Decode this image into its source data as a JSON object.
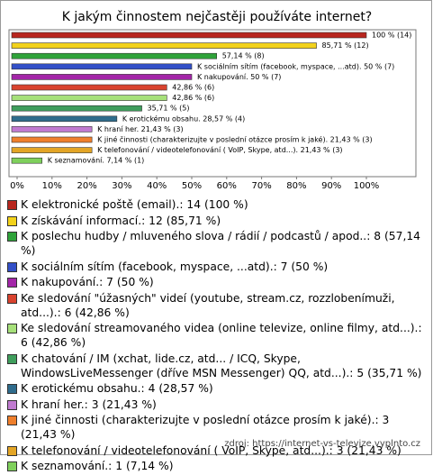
{
  "chart_data": {
    "type": "barh",
    "title": "K jakým činnostem nejčastěji používáte internet?",
    "categories": [
      "K elektronické poště (email).: 14 (100 %)",
      "K získávání informací.: 12 (85,71 %)",
      "K poslechu hudby / mluveného slova / rádií / podcastů / apod..: 8 (57,14 %)",
      "K sociálním sítím (facebook, myspace, ...atd).: 7 (50 %)",
      "K nakupování.: 7 (50 %)",
      "Ke sledování \"úžasných\" videí (youtube, stream.cz, rozzlobenímuži, atd...).: 6 (42,86 %)",
      "Ke sledování streamovaného videa (online televize, online filmy, atd...).: 6 (42,86 %)",
      "K chatování / IM (xchat, lide.cz, atd... / ICQ, Skype, WindowsLiveMessenger (dříve MSN Messenger) QQ, atd...).: 5 (35,71 %)",
      "K erotickému obsahu.: 4 (28,57 %)",
      "K hraní her.: 3 (21,43 %)",
      "K jiné činnosti (charakterizujte v poslední otázce prosím k jaké).: 3 (21,43 %)",
      "K telefonování / videotelefonování ( VoIP, Skype, atd...).: 3 (21,43 %)",
      "K seznamování.: 1 (7,14 %)"
    ],
    "values": [
      100,
      85.71,
      57.14,
      50,
      50,
      42.86,
      42.86,
      35.71,
      28.57,
      21.43,
      21.43,
      21.43,
      7.14
    ],
    "value_labels": [
      "100 % (14)",
      "85,71 % (12)",
      "57,14 % (8)",
      "K sociálním sítím (facebook, myspace, ...atd). 50 % (7)",
      "K nakupování. 50 % (7)",
      "42,86 % (6)",
      "42,86 % (6)",
      "35,71 % (5)",
      "K erotickému obsahu. 28,57 % (4)",
      "K hraní her. 21,43 % (3)",
      "K jiné činnosti (charakterizujte v poslední otázce prosím k jaké). 21,43 % (3)",
      "K telefonování / videotelefonování ( VoIP, Skype, atd...). 21,43 % (3)",
      "K seznamování. 7,14 % (1)"
    ],
    "colors": [
      "#b8261e",
      "#f2d21b",
      "#2fa33a",
      "#3350c8",
      "#a326a8",
      "#d9432e",
      "#a6e07a",
      "#3f9e5c",
      "#2f6c8c",
      "#c07ad0",
      "#ef7f2c",
      "#e3a526",
      "#7fd05c"
    ],
    "xlim": [
      0,
      100
    ],
    "xticks": [
      {
        "value": 0,
        "label": "0%"
      },
      {
        "value": 10,
        "label": "10%"
      },
      {
        "value": 20,
        "label": "20%"
      },
      {
        "value": 30,
        "label": "30%"
      },
      {
        "value": 40,
        "label": "40%"
      },
      {
        "value": 50,
        "label": "50%"
      },
      {
        "value": 60,
        "label": "60%"
      },
      {
        "value": 70,
        "label": "70%"
      },
      {
        "value": 80,
        "label": "80%"
      },
      {
        "value": 90,
        "label": "90%"
      },
      {
        "value": 100,
        "label": "100%"
      }
    ],
    "source": "zdroj: https://internet-vs-televize.vyplnto.cz"
  }
}
